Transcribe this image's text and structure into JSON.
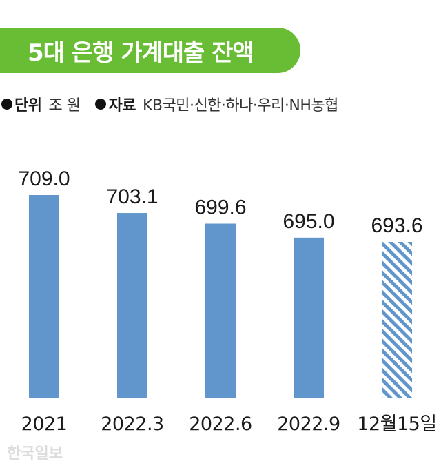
{
  "title": "5대 은행 가계대출 잔액",
  "meta": {
    "unit_key": "단위",
    "unit_value": "조 원",
    "source_key": "자료",
    "source_value": "KB국민·신한·하나·우리·NH농협"
  },
  "watermark": "한국일보",
  "colors": {
    "title_bg": "#69bd35",
    "bar": "#6096cc",
    "bar_projected_stripe": "#6096cc"
  },
  "chart_data": {
    "type": "bar",
    "categories": [
      "2021",
      "2022.3",
      "2022.6",
      "2022.9",
      "12월15일"
    ],
    "values": [
      709.0,
      703.1,
      699.6,
      695.0,
      693.6
    ],
    "value_labels": [
      "709.0",
      "703.1",
      "699.6",
      "695.0",
      "693.6"
    ],
    "patterned": [
      false,
      false,
      false,
      false,
      true
    ],
    "title": "5대 은행 가계대출 잔액",
    "xlabel": "",
    "ylabel": "",
    "grid": false,
    "legend": "none"
  }
}
